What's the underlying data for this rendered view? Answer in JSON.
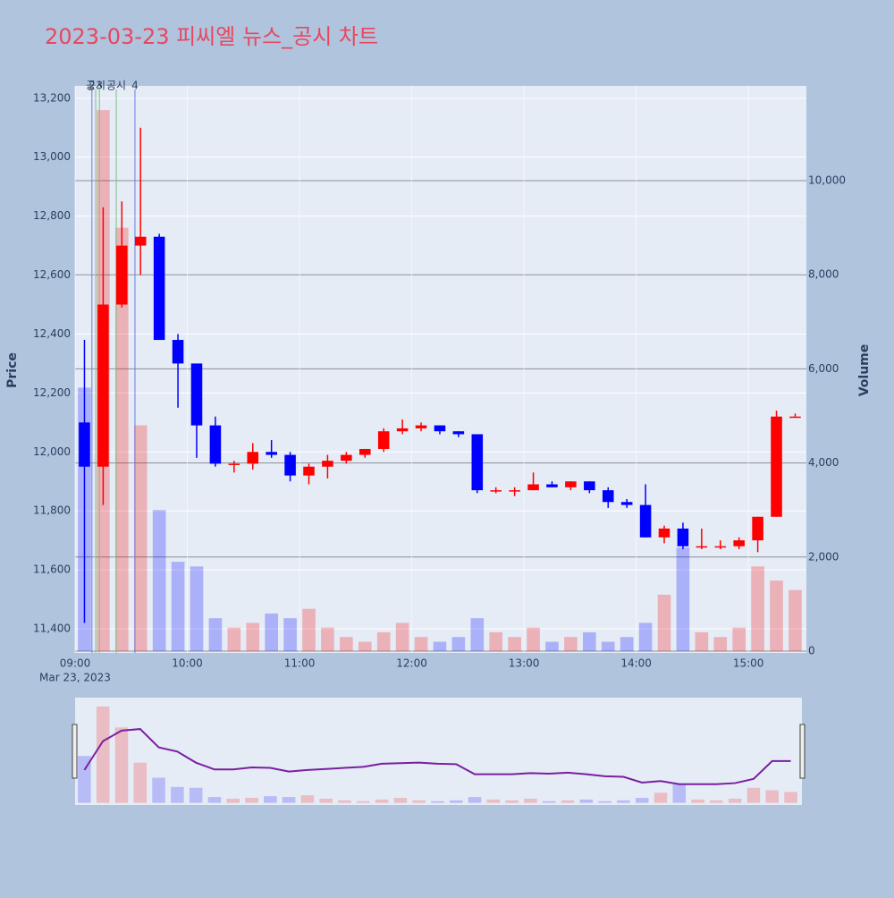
{
  "chart_data": {
    "type": "candlestick",
    "title": "2023-03-23 피씨엘 뉴스_공시 차트",
    "ylabel": "Price",
    "y2label": "Volume",
    "x_date_label": "Mar 23, 2023",
    "x": [
      "2023-03-23 09:00",
      "2023-03-23 09:10",
      "2023-03-23 09:20",
      "2023-03-23 09:30",
      "2023-03-23 09:40",
      "2023-03-23 09:50",
      "2023-03-23 10:00",
      "2023-03-23 10:10",
      "2023-03-23 10:20",
      "2023-03-23 10:30",
      "2023-03-23 10:40",
      "2023-03-23 10:50",
      "2023-03-23 11:00",
      "2023-03-23 11:10",
      "2023-03-23 11:20",
      "2023-03-23 11:30",
      "2023-03-23 11:40",
      "2023-03-23 11:50",
      "2023-03-23 12:00",
      "2023-03-23 12:10",
      "2023-03-23 12:20",
      "2023-03-23 12:30",
      "2023-03-23 12:40",
      "2023-03-23 12:50",
      "2023-03-23 13:00",
      "2023-03-23 13:10",
      "2023-03-23 13:20",
      "2023-03-23 13:30",
      "2023-03-23 13:40",
      "2023-03-23 13:50",
      "2023-03-23 14:00",
      "2023-03-23 14:10",
      "2023-03-23 14:20",
      "2023-03-23 14:30",
      "2023-03-23 14:40",
      "2023-03-23 14:50",
      "2023-03-23 15:00",
      "2023-03-23 15:10",
      "2023-03-23 15:20"
    ],
    "open": [
      12100,
      11950,
      12500,
      12700,
      12730,
      12380,
      12300,
      12090,
      11960,
      11960,
      12000,
      11990,
      11920,
      11950,
      11970,
      11990,
      12010,
      12070,
      12080,
      12090,
      12070,
      12060,
      11870,
      11870,
      11870,
      11890,
      11880,
      11900,
      11870,
      11830,
      11820,
      11710,
      11740,
      11680,
      11680,
      11680,
      11700,
      11780,
      12120
    ],
    "high": [
      12380,
      12830,
      12850,
      13100,
      12740,
      12400,
      12300,
      12120,
      11970,
      12030,
      12040,
      12000,
      11960,
      11990,
      12000,
      12010,
      12080,
      12110,
      12100,
      12090,
      12070,
      12060,
      11880,
      11880,
      11930,
      11900,
      11900,
      11900,
      11880,
      11840,
      11890,
      11750,
      11760,
      11740,
      11700,
      11710,
      11780,
      12140,
      12130
    ],
    "low": [
      11420,
      11820,
      12490,
      12600,
      12380,
      12150,
      11980,
      11950,
      11930,
      11940,
      11980,
      11900,
      11890,
      11910,
      11960,
      11980,
      12000,
      12060,
      12070,
      12060,
      12050,
      11860,
      11860,
      11850,
      11870,
      11880,
      11870,
      11860,
      11810,
      11810,
      11710,
      11690,
      11670,
      11670,
      11670,
      11670,
      11660,
      11780,
      12120
    ],
    "close": [
      11950,
      12500,
      12700,
      12730,
      12380,
      12300,
      12090,
      11960,
      11960,
      12000,
      11990,
      11920,
      11950,
      11970,
      11990,
      12010,
      12070,
      12080,
      12090,
      12070,
      12060,
      11870,
      11870,
      11870,
      11890,
      11880,
      11900,
      11870,
      11830,
      11820,
      11710,
      11740,
      11680,
      11680,
      11680,
      11700,
      11780,
      12120,
      12120
    ],
    "volume": [
      5600,
      11500,
      9000,
      4800,
      3000,
      1900,
      1800,
      700,
      500,
      600,
      800,
      700,
      900,
      500,
      300,
      200,
      400,
      600,
      300,
      200,
      300,
      700,
      400,
      300,
      500,
      200,
      300,
      400,
      200,
      300,
      600,
      1200,
      2200,
      400,
      300,
      500,
      1800,
      1500,
      1300
    ],
    "up_color": "#ff0000",
    "down_color": "#0000ff",
    "xlim": [
      "2023-03-23 09:00",
      "2023-03-23 15:31"
    ],
    "xticks": [
      {
        "value": "2023-03-23 09:00",
        "label": "09:00"
      },
      {
        "value": "2023-03-23 10:00",
        "label": "10:00"
      },
      {
        "value": "2023-03-23 11:00",
        "label": "11:00"
      },
      {
        "value": "2023-03-23 12:00",
        "label": "12:00"
      },
      {
        "value": "2023-03-23 13:00",
        "label": "13:00"
      },
      {
        "value": "2023-03-23 14:00",
        "label": "14:00"
      },
      {
        "value": "2023-03-23 15:00",
        "label": "15:00"
      }
    ],
    "ylim": [
      11318,
      13242
    ],
    "yticks": [
      {
        "value": 11400,
        "label": "11,400"
      },
      {
        "value": 11600,
        "label": "11,600"
      },
      {
        "value": 11800,
        "label": "11,800"
      },
      {
        "value": 12000,
        "label": "12,000"
      },
      {
        "value": 12200,
        "label": "12,200"
      },
      {
        "value": 12400,
        "label": "12,400"
      },
      {
        "value": 12600,
        "label": "12,600"
      },
      {
        "value": 12800,
        "label": "12,800"
      },
      {
        "value": 13000,
        "label": "13,000"
      },
      {
        "value": 13200,
        "label": "13,200"
      }
    ],
    "y2lim": [
      -38,
      12015
    ],
    "y2ticks": [
      0,
      {
        "value": 2000,
        "label": "2,000"
      },
      {
        "value": 4000,
        "label": "4,000"
      },
      {
        "value": 6000,
        "label": "6,000"
      },
      {
        "value": 8000,
        "label": "8,000"
      },
      {
        "value": 10000,
        "label": "10,000"
      }
    ],
    "annotations": [
      {
        "x": "2023-03-23 09:09",
        "text": "2",
        "color": "#6a7de0"
      },
      {
        "x": "2023-03-23 09:11",
        "text": "공시",
        "color": "#7fbf7f"
      },
      {
        "x": "2023-03-23 09:13",
        "text": "3",
        "color": "#7fbf7f"
      },
      {
        "x": "2023-03-23 09:22",
        "text": "공시",
        "color": "#7fbf7f"
      },
      {
        "x": "2023-03-23 09:32",
        "text": "4",
        "color": "#6a7de0"
      }
    ]
  }
}
